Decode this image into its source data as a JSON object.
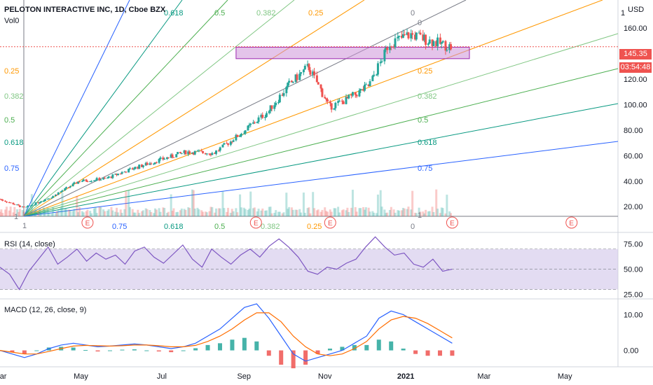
{
  "header": {
    "title": "PELOTON INTERACTIVE INC, 1D, Cboe BZX",
    "volume_label": "Vol",
    "volume_value": "0",
    "currency": "USD"
  },
  "price_badges": {
    "last_price": "145.35",
    "countdown": "03:54:48",
    "color": "#ef5350"
  },
  "colors": {
    "fan_blue": "#2962ff",
    "fan_teal": "#089981",
    "fan_green": "#4caf50",
    "fan_lightgreen": "#81c784",
    "fan_orange": "#ff9800",
    "fan_gray": "#787b86",
    "zone_fill": "#ce93d8",
    "zone_border": "#9c27b0",
    "up": "#26a69a",
    "down": "#ef5350",
    "rsi_line": "#7e57c2",
    "macd_line": "#2962ff",
    "signal_line": "#ff6d00"
  },
  "chart_data": [
    {
      "type": "candlestick",
      "title": "PELOTON INTERACTIVE INC, 1D, Cboe BZX",
      "y_axis_ticks": [
        "20.00",
        "40.00",
        "60.00",
        "80.00",
        "100.00",
        "120.00",
        "140.00",
        "160.00"
      ],
      "y_axis_top_label": "1",
      "ylim": [
        13,
        182
      ],
      "x_axis_ticks": [
        "Mar",
        "May",
        "Jul",
        "Sep",
        "Nov",
        "2021",
        "Mar",
        "May"
      ],
      "close_series": [
        {
          "date": "2020-03-01",
          "close": 26
        },
        {
          "date": "2020-03-20",
          "close": 19
        },
        {
          "date": "2020-04-10",
          "close": 28
        },
        {
          "date": "2020-04-30",
          "close": 40
        },
        {
          "date": "2020-05-20",
          "close": 42
        },
        {
          "date": "2020-06-10",
          "close": 50
        },
        {
          "date": "2020-07-01",
          "close": 57
        },
        {
          "date": "2020-07-20",
          "close": 63
        },
        {
          "date": "2020-08-10",
          "close": 62
        },
        {
          "date": "2020-08-31",
          "close": 78
        },
        {
          "date": "2020-09-20",
          "close": 95
        },
        {
          "date": "2020-10-05",
          "close": 115
        },
        {
          "date": "2020-10-20",
          "close": 130
        },
        {
          "date": "2020-11-05",
          "close": 98
        },
        {
          "date": "2020-11-20",
          "close": 105
        },
        {
          "date": "2020-12-05",
          "close": 115
        },
        {
          "date": "2020-12-20",
          "close": 148
        },
        {
          "date": "2021-01-05",
          "close": 155
        },
        {
          "date": "2021-01-20",
          "close": 150
        },
        {
          "date": "2021-02-05",
          "close": 145
        }
      ],
      "horizontal_zone": {
        "low": 136,
        "high": 145
      },
      "last_price": 145.35,
      "earnings_marker": "E",
      "gann_fan": {
        "left_labels": [
          "0.25",
          "0.382",
          "0.5",
          "0.618",
          "0.75"
        ],
        "top_labels": [
          "0.618",
          "0.5",
          "0.382",
          "0.25"
        ],
        "top_zero_label": "0",
        "right_labels": [
          "0.25",
          "0.382",
          "0.5",
          "0.618",
          "0.75"
        ],
        "bottom_labels": [
          "0.75",
          "0.618",
          "0.5",
          "0.382",
          "0.25"
        ],
        "bottom_zero_label": "0",
        "unit_labels": [
          "1",
          "1",
          "1"
        ]
      }
    },
    {
      "type": "line",
      "title": "RSI (14, close)",
      "y_axis_ticks": [
        "25.00",
        "50.00",
        "75.00"
      ],
      "ylim": [
        22,
        83
      ],
      "band": [
        30,
        70
      ],
      "values": [
        52,
        45,
        30,
        48,
        60,
        72,
        55,
        62,
        70,
        58,
        66,
        60,
        64,
        55,
        68,
        72,
        62,
        56,
        65,
        74,
        60,
        52,
        70,
        62,
        55,
        64,
        70,
        62,
        73,
        80,
        72,
        62,
        48,
        45,
        52,
        50,
        56,
        60,
        72,
        82,
        72,
        64,
        66,
        55,
        52,
        60,
        48,
        50
      ]
    },
    {
      "type": "line",
      "title": "MACD (12, 26, close, 9)",
      "y_axis_ticks": [
        "0.00",
        "10.00"
      ],
      "ylim": [
        -4,
        14
      ],
      "macd": [
        0,
        -1,
        -2,
        -1,
        0.5,
        1.5,
        2,
        1.5,
        1,
        1.2,
        1.5,
        1.8,
        1.5,
        1,
        0.5,
        1,
        2,
        4,
        6,
        9,
        12,
        13,
        9,
        4,
        -1,
        -3,
        -2,
        -1,
        0,
        2,
        4,
        9,
        11,
        10,
        8,
        6,
        4,
        2
      ],
      "signal": [
        0,
        -0.5,
        -1,
        -1,
        -0.3,
        0.5,
        1.2,
        1.4,
        1.3,
        1.2,
        1.3,
        1.5,
        1.5,
        1.3,
        1,
        1,
        1.4,
        2.5,
        4,
        6,
        8.5,
        10.5,
        10.5,
        8,
        4,
        1,
        -1,
        -1.5,
        -1,
        0.5,
        2.5,
        6,
        8.5,
        9.5,
        9,
        7.5,
        5.5,
        3.5
      ],
      "histogram": [
        0,
        -0.5,
        -1,
        0,
        0.8,
        1,
        0.8,
        0.1,
        -0.3,
        0,
        0.2,
        0.3,
        0,
        -0.3,
        -0.5,
        0,
        0.6,
        1.5,
        2,
        3,
        3.5,
        2.5,
        -1.5,
        -4,
        -5,
        -4,
        -1,
        0.5,
        1,
        1.5,
        1.5,
        3,
        2.5,
        0.5,
        -1,
        -1.5,
        -1.5,
        -1.5
      ]
    }
  ]
}
